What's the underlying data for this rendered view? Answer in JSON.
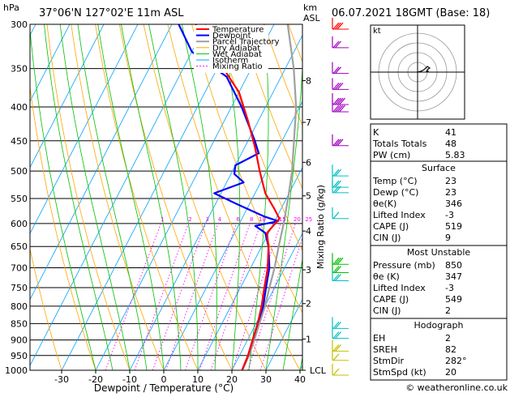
{
  "header": {
    "location": "37°06'N  127°02'E  11m  ASL",
    "datetime": "06.07.2021  18GMT  (Base: 18)",
    "hpa_unit": "hPa",
    "km_unit": "km",
    "asl_unit": "ASL"
  },
  "legend": [
    "Temperature",
    "Dewpoint",
    "Parcel Trajectory",
    "Dry Adiabat",
    "Wet Adiabat",
    "Isotherm",
    "Mixing Ratio"
  ],
  "colors": {
    "temperature": "#ff0000",
    "dewpoint": "#0000ff",
    "parcel": "#a0a0a0",
    "dry_adiabat": "#ffa500",
    "wet_adiabat": "#00c000",
    "isotherm": "#00a0ff",
    "mixing_ratio": "#ff00ff",
    "wind_barb_upper": "#a000c0",
    "wind_barb_mid": "#00c0c0",
    "wind_barb_lower": "#00c000",
    "wind_barb_surface": "#c0c000"
  },
  "chart_data": {
    "type": "line",
    "xlabel": "Dewpoint / Temperature (°C)",
    "ylabel": "hPa",
    "right_label": "Mixing Ratio (g/kg)",
    "xlim": [
      -40,
      40
    ],
    "ylim": [
      1000,
      300
    ],
    "pressure_levels": [
      300,
      350,
      400,
      450,
      500,
      550,
      600,
      650,
      700,
      750,
      800,
      850,
      900,
      950,
      1000
    ],
    "temp_ticks": [
      -30,
      -20,
      -10,
      0,
      10,
      20,
      30,
      40
    ],
    "height_ticks": [
      {
        "label": "8",
        "p": 365
      },
      {
        "label": "7",
        "p": 422
      },
      {
        "label": "6",
        "p": 485
      },
      {
        "label": "5",
        "p": 545
      },
      {
        "label": "4",
        "p": 616
      },
      {
        "label": "3",
        "p": 705
      },
      {
        "label": "2",
        "p": 793
      },
      {
        "label": "1",
        "p": 897
      },
      {
        "label": "LCL",
        "p": 1000
      }
    ],
    "mixing_ratio_labels": [
      "1",
      "2",
      "3",
      "4",
      "6",
      "8",
      "10",
      "15",
      "20",
      "25"
    ],
    "series": [
      {
        "name": "Temperature",
        "points": [
          [
            23,
            1000
          ],
          [
            22.5,
            950
          ],
          [
            21.5,
            900
          ],
          [
            20.5,
            850
          ],
          [
            19,
            800
          ],
          [
            17,
            750
          ],
          [
            15,
            700
          ],
          [
            12,
            650
          ],
          [
            9.5,
            620
          ],
          [
            11,
            590
          ],
          [
            8,
            570
          ],
          [
            3,
            540
          ],
          [
            -2,
            500
          ],
          [
            -7,
            460
          ],
          [
            -13,
            420
          ],
          [
            -20,
            380
          ],
          [
            -31,
            340
          ],
          [
            -43,
            300
          ]
        ]
      },
      {
        "name": "Dewpoint",
        "points": [
          [
            23,
            1000
          ],
          [
            22.5,
            950
          ],
          [
            21.5,
            900
          ],
          [
            20.5,
            850
          ],
          [
            19.5,
            800
          ],
          [
            17.5,
            750
          ],
          [
            15.5,
            700
          ],
          [
            12,
            650
          ],
          [
            9,
            620
          ],
          [
            5,
            605
          ],
          [
            11,
            595
          ],
          [
            6,
            585
          ],
          [
            -4,
            560
          ],
          [
            -12,
            540
          ],
          [
            -5,
            520
          ],
          [
            -9,
            505
          ],
          [
            -10,
            490
          ],
          [
            -5,
            470
          ],
          [
            -8,
            450
          ],
          [
            -17,
            400
          ],
          [
            -26,
            360
          ],
          [
            -40,
            330
          ],
          [
            -48,
            300
          ]
        ]
      },
      {
        "name": "Parcel Trajectory",
        "points": [
          [
            23,
            1000
          ],
          [
            22.8,
            950
          ],
          [
            22,
            900
          ],
          [
            21,
            850
          ],
          [
            20,
            800
          ],
          [
            18.5,
            750
          ],
          [
            17,
            700
          ],
          [
            15,
            650
          ],
          [
            13,
            600
          ],
          [
            10.5,
            550
          ],
          [
            7.5,
            500
          ],
          [
            3.5,
            450
          ],
          [
            -1,
            400
          ],
          [
            -7.5,
            350
          ],
          [
            -16,
            300
          ]
        ]
      }
    ]
  },
  "hodograph": {
    "unit": "kt"
  },
  "indices": [
    {
      "label": "K",
      "value": "41"
    },
    {
      "label": "Totals Totals",
      "value": "48"
    },
    {
      "label": "PW (cm)",
      "value": "5.83"
    }
  ],
  "surface": {
    "title": "Surface",
    "rows": [
      {
        "label": "Temp (°C)",
        "value": "23"
      },
      {
        "label": "Dewp (°C)",
        "value": "23"
      },
      {
        "label": "θe(K)",
        "value": "346"
      },
      {
        "label": "Lifted Index",
        "value": "-3"
      },
      {
        "label": "CAPE (J)",
        "value": "519"
      },
      {
        "label": "CIN (J)",
        "value": "9"
      }
    ]
  },
  "most_unstable": {
    "title": "Most Unstable",
    "rows": [
      {
        "label": "Pressure (mb)",
        "value": "850"
      },
      {
        "label": "θe (K)",
        "value": "347"
      },
      {
        "label": "Lifted Index",
        "value": "-3"
      },
      {
        "label": "CAPE (J)",
        "value": "549"
      },
      {
        "label": "CIN (J)",
        "value": "2"
      }
    ]
  },
  "hodograph_table": {
    "title": "Hodograph",
    "rows": [
      {
        "label": "EH",
        "value": "2"
      },
      {
        "label": "SREH",
        "value": "82"
      },
      {
        "label": "StmDir",
        "value": "282°"
      },
      {
        "label": "StmSpd (kt)",
        "value": "20"
      }
    ]
  },
  "footer": {
    "copyright": "© weatheronline.co.uk"
  }
}
